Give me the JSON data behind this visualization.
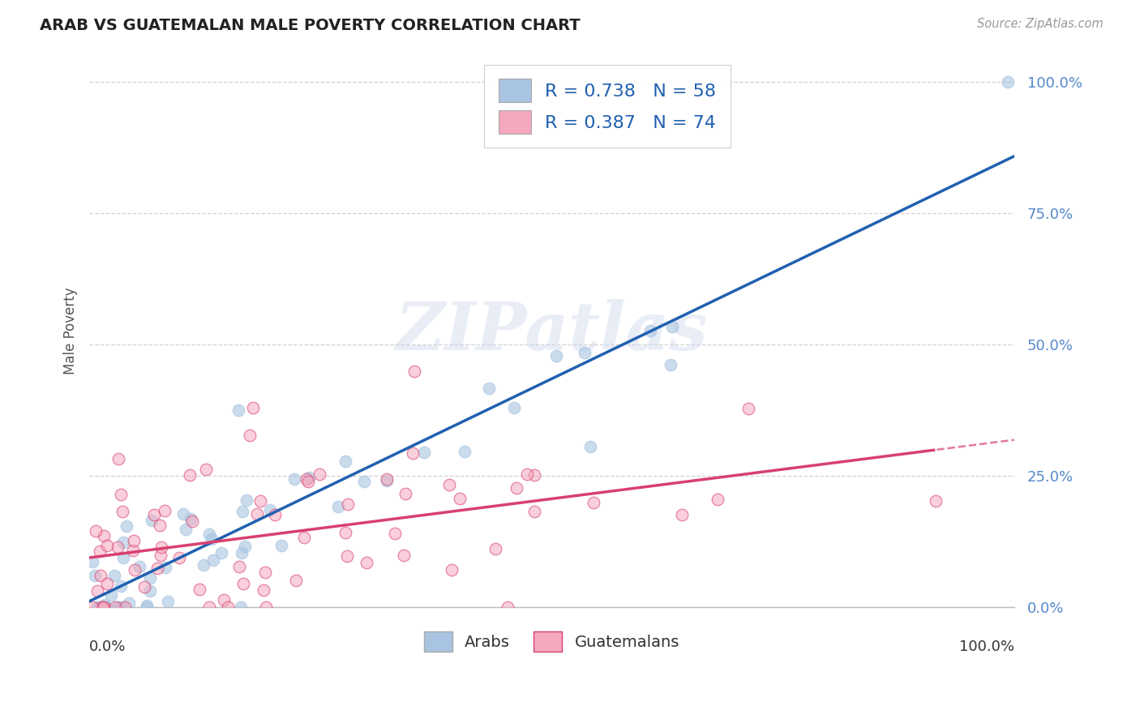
{
  "title": "ARAB VS GUATEMALAN MALE POVERTY CORRELATION CHART",
  "source": "Source: ZipAtlas.com",
  "ylabel": "Male Poverty",
  "legend_arab": "Arabs",
  "legend_guatemalan": "Guatemalans",
  "arab_R": 0.738,
  "arab_N": 58,
  "guatemalan_R": 0.387,
  "guatemalan_N": 74,
  "arab_color": "#a8c4e0",
  "arab_line_color": "#2060b0",
  "guatemalan_color": "#f5a8be",
  "guatemalan_line_color": "#d84070",
  "background_color": "#ffffff",
  "grid_color": "#cccccc",
  "watermark_text": "ZIPatlas",
  "watermark_color": "#ccd8ec",
  "ytick_labels": [
    "0.0%",
    "25.0%",
    "50.0%",
    "75.0%",
    "100.0%"
  ],
  "ytick_values": [
    0.0,
    0.25,
    0.5,
    0.75,
    1.0
  ],
  "xtick_left": "0.0%",
  "xtick_right": "100.0%",
  "title_color": "#222222",
  "source_color": "#999999",
  "ytick_color": "#5588cc",
  "xtick_color": "#333333",
  "legend_label_color": "#2060b0",
  "arab_line_intercept": 0.02,
  "arab_line_slope": 0.73,
  "guatemalan_line_intercept": 0.05,
  "guatemalan_line_slope": 0.32
}
